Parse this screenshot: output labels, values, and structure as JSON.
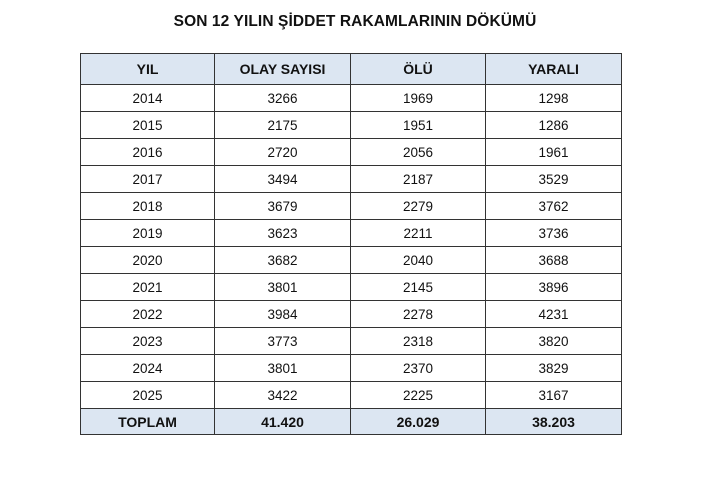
{
  "title": "SON 12 YILIN ŞİDDET RAKAMLARININ DÖKÜMÜ",
  "table": {
    "headers": [
      "YIL",
      "OLAY SAYISI",
      "ÖLÜ",
      "YARALI"
    ],
    "rows": [
      [
        "2014",
        "3266",
        "1969",
        "1298"
      ],
      [
        "2015",
        "2175",
        "1951",
        "1286"
      ],
      [
        "2016",
        "2720",
        "2056",
        "1961"
      ],
      [
        "2017",
        "3494",
        "2187",
        "3529"
      ],
      [
        "2018",
        "3679",
        "2279",
        "3762"
      ],
      [
        "2019",
        "3623",
        "2211",
        "3736"
      ],
      [
        "2020",
        "3682",
        "2040",
        "3688"
      ],
      [
        "2021",
        "3801",
        "2145",
        "3896"
      ],
      [
        "2022",
        "3984",
        "2278",
        "4231"
      ],
      [
        "2023",
        "3773",
        "2318",
        "3820"
      ],
      [
        "2024",
        "3801",
        "2370",
        "3829"
      ],
      [
        "2025",
        "3422",
        "2225",
        "3167"
      ]
    ],
    "total": [
      "TOPLAM",
      "41.420",
      "26.029",
      "38.203"
    ]
  }
}
